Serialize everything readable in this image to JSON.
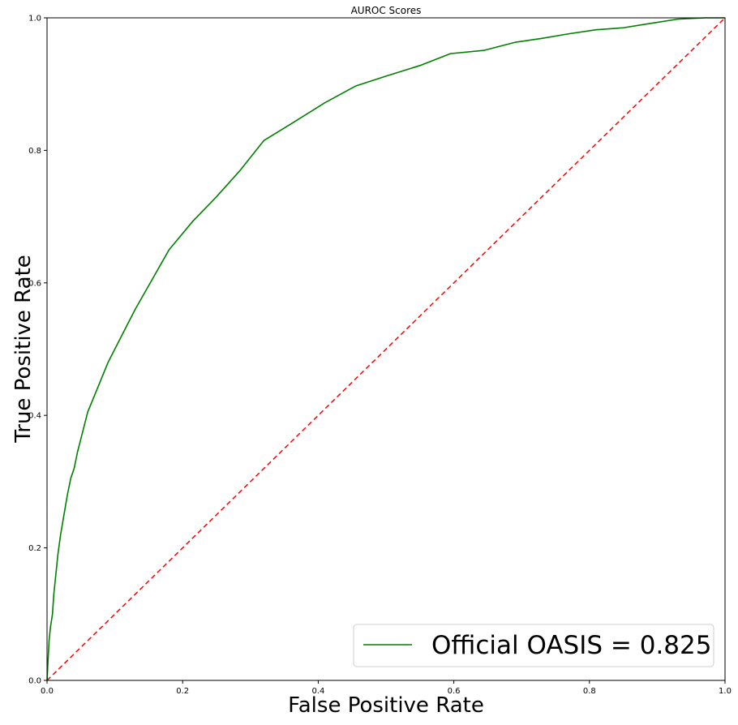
{
  "chart_data": {
    "type": "line",
    "title": "AUROC Scores",
    "xlabel": "False Positive Rate",
    "ylabel": "True Positive Rate",
    "xlim": [
      0.0,
      1.0
    ],
    "ylim": [
      0.0,
      1.0
    ],
    "xticks": [
      "0.0",
      "0.2",
      "0.4",
      "0.6",
      "0.8",
      "1.0"
    ],
    "yticks": [
      "0.0",
      "0.2",
      "0.4",
      "0.6",
      "0.8",
      "1.0"
    ],
    "grid": false,
    "legend": {
      "placement": "lower-right",
      "entries": [
        "Official OASIS = 0.825"
      ]
    },
    "series": [
      {
        "name": "Official OASIS = 0.825",
        "color": "#008000",
        "style": "solid",
        "x": [
          0.0,
          0.001,
          0.002,
          0.003,
          0.005,
          0.008,
          0.01,
          0.013,
          0.016,
          0.02,
          0.025,
          0.03,
          0.035,
          0.04,
          0.045,
          0.05,
          0.055,
          0.06,
          0.07,
          0.08,
          0.09,
          0.1,
          0.11,
          0.13,
          0.155,
          0.18,
          0.215,
          0.25,
          0.285,
          0.32,
          0.36,
          0.41,
          0.455,
          0.5,
          0.55,
          0.595,
          0.645,
          0.69,
          0.73,
          0.77,
          0.81,
          0.85,
          0.88,
          0.93,
          0.97,
          1.0
        ],
        "y": [
          0.0,
          0.02,
          0.04,
          0.06,
          0.08,
          0.1,
          0.13,
          0.16,
          0.19,
          0.22,
          0.25,
          0.28,
          0.305,
          0.32,
          0.345,
          0.365,
          0.385,
          0.405,
          0.43,
          0.455,
          0.48,
          0.5,
          0.52,
          0.56,
          0.605,
          0.65,
          0.693,
          0.73,
          0.77,
          0.815,
          0.84,
          0.872,
          0.897,
          0.912,
          0.928,
          0.946,
          0.951,
          0.963,
          0.969,
          0.976,
          0.982,
          0.985,
          0.99,
          0.998,
          1.0,
          1.0
        ]
      },
      {
        "name": "",
        "color": "#ff0000",
        "style": "dashed",
        "x": [
          0.0,
          1.0
        ],
        "y": [
          0.0,
          1.0
        ]
      }
    ]
  }
}
